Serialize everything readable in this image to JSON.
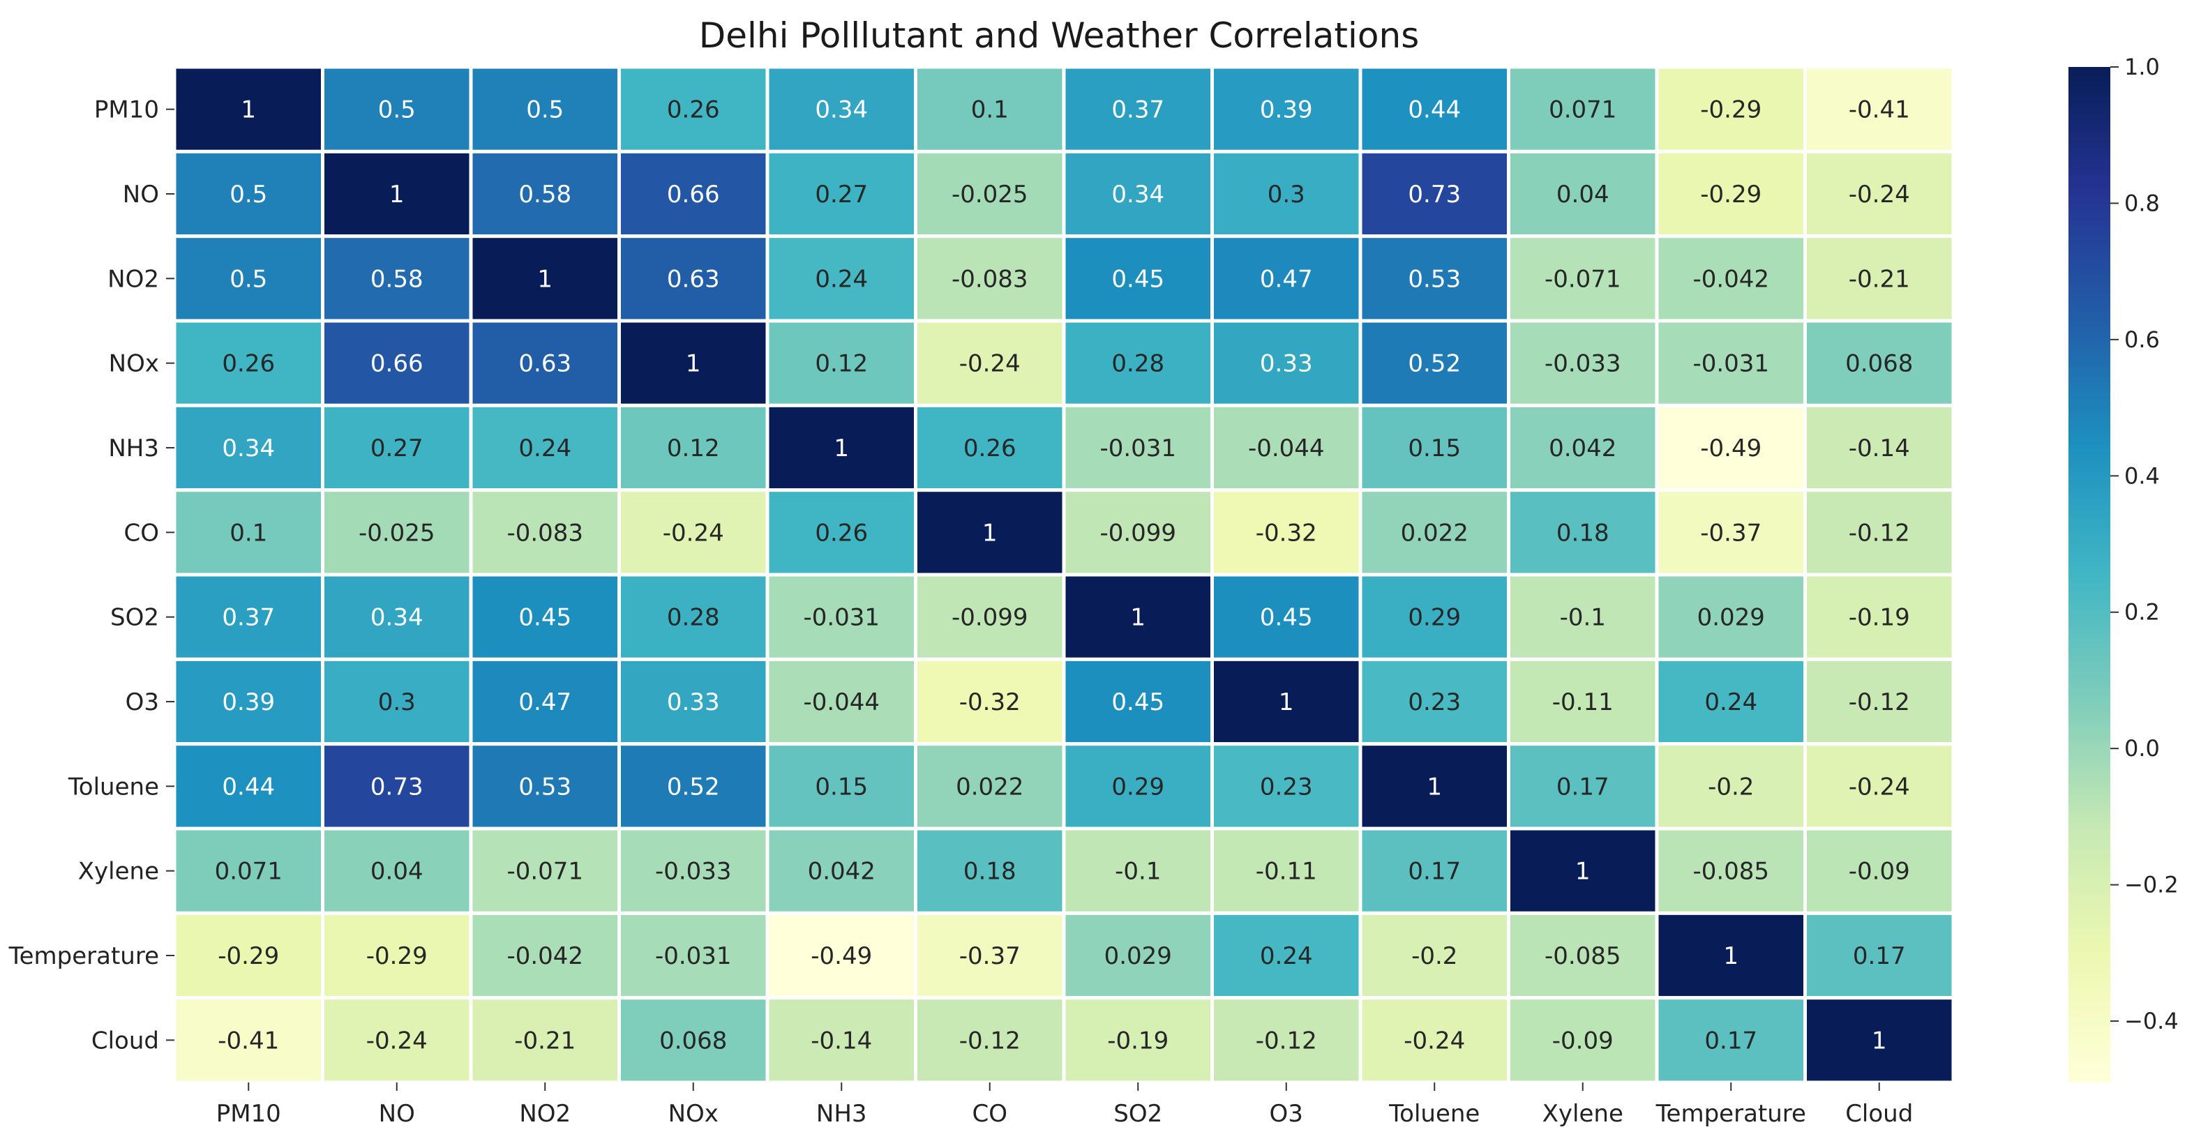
{
  "chart_data": {
    "type": "heatmap",
    "title": "Delhi Polllutant and Weather Correlations",
    "xlabel": "",
    "ylabel": "",
    "row_labels": [
      "PM10",
      "NO",
      "NO2",
      "NOx",
      "NH3",
      "CO",
      "SO2",
      "O3",
      "Toluene",
      "Xylene",
      "Temperature",
      "Cloud"
    ],
    "col_labels": [
      "PM10",
      "NO",
      "NO2",
      "NOx",
      "NH3",
      "CO",
      "SO2",
      "O3",
      "Toluene",
      "Xylene",
      "Temperature",
      "Cloud"
    ],
    "values": [
      [
        1,
        0.5,
        0.5,
        0.26,
        0.34,
        0.1,
        0.37,
        0.39,
        0.44,
        0.071,
        -0.29,
        -0.41
      ],
      [
        0.5,
        1,
        0.58,
        0.66,
        0.27,
        -0.025,
        0.34,
        0.3,
        0.73,
        0.04,
        -0.29,
        -0.24
      ],
      [
        0.5,
        0.58,
        1,
        0.63,
        0.24,
        -0.083,
        0.45,
        0.47,
        0.53,
        -0.071,
        -0.042,
        -0.21
      ],
      [
        0.26,
        0.66,
        0.63,
        1,
        0.12,
        -0.24,
        0.28,
        0.33,
        0.52,
        -0.033,
        -0.031,
        0.068
      ],
      [
        0.34,
        0.27,
        0.24,
        0.12,
        1,
        0.26,
        -0.031,
        -0.044,
        0.15,
        0.042,
        -0.49,
        -0.14
      ],
      [
        0.1,
        -0.025,
        -0.083,
        -0.24,
        0.26,
        1,
        -0.099,
        -0.32,
        0.022,
        0.18,
        -0.37,
        -0.12
      ],
      [
        0.37,
        0.34,
        0.45,
        0.28,
        -0.031,
        -0.099,
        1,
        0.45,
        0.29,
        -0.1,
        0.029,
        -0.19
      ],
      [
        0.39,
        0.3,
        0.47,
        0.33,
        -0.044,
        -0.32,
        0.45,
        1,
        0.23,
        -0.11,
        0.24,
        -0.12
      ],
      [
        0.44,
        0.73,
        0.53,
        0.52,
        0.15,
        0.022,
        0.29,
        0.23,
        1,
        0.17,
        -0.2,
        -0.24
      ],
      [
        0.071,
        0.04,
        -0.071,
        -0.033,
        0.042,
        0.18,
        -0.1,
        -0.11,
        0.17,
        1,
        -0.085,
        -0.09
      ],
      [
        -0.29,
        -0.29,
        -0.042,
        -0.031,
        -0.49,
        -0.37,
        0.029,
        0.24,
        -0.2,
        -0.085,
        1,
        0.17
      ],
      [
        -0.41,
        -0.24,
        -0.21,
        0.068,
        -0.14,
        -0.12,
        -0.19,
        -0.12,
        -0.24,
        -0.09,
        0.17,
        1
      ]
    ],
    "colormap": "YlGnBu",
    "vmin": -0.49,
    "vmax": 1.0,
    "colorbar_ticks": [
      {
        "value": 1.0,
        "label": "1.0"
      },
      {
        "value": 0.8,
        "label": "0.8"
      },
      {
        "value": 0.6,
        "label": "0.6"
      },
      {
        "value": 0.4,
        "label": "0.4"
      },
      {
        "value": 0.2,
        "label": "0.2"
      },
      {
        "value": 0.0,
        "label": "0.0"
      },
      {
        "value": -0.2,
        "label": "−0.2"
      },
      {
        "value": -0.4,
        "label": "−0.4"
      }
    ]
  }
}
